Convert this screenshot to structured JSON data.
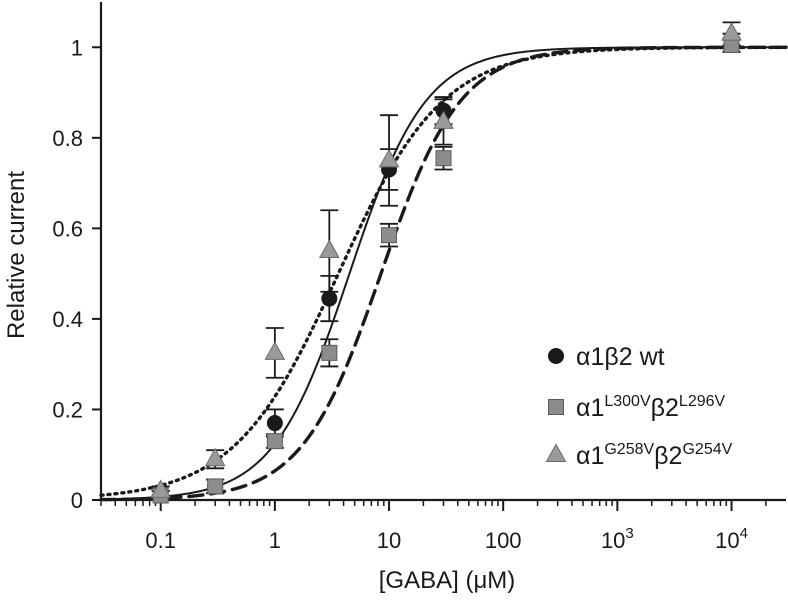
{
  "chart_data": {
    "type": "scatter",
    "title": "",
    "xlabel": "[GABA] (μM)",
    "ylabel": "Relative current",
    "xscale": "log",
    "xlim": [
      0.03,
      30000
    ],
    "ylim": [
      0,
      1.1
    ],
    "grid": false,
    "legend_position": "lower-right",
    "x_ticks": [
      {
        "value": 0.1,
        "label": "0.1"
      },
      {
        "value": 1,
        "label": "1"
      },
      {
        "value": 10,
        "label": "10"
      },
      {
        "value": 100,
        "label": "100"
      },
      {
        "value": 1000,
        "base": "10",
        "exp": "3"
      },
      {
        "value": 10000,
        "base": "10",
        "exp": "4"
      }
    ],
    "y_ticks": [
      {
        "value": 0,
        "label": "0"
      },
      {
        "value": 0.2,
        "label": "0.2"
      },
      {
        "value": 0.4,
        "label": "0.4"
      },
      {
        "value": 0.6,
        "label": "0.6"
      },
      {
        "value": 0.8,
        "label": "0.8"
      },
      {
        "value": 1,
        "label": "1"
      }
    ],
    "series": [
      {
        "name": "α1β2 wt",
        "legend": {
          "parts": [
            {
              "t": "α1β2 wt"
            }
          ]
        },
        "marker": "circle",
        "color": "#1a1a1a",
        "fit_style": "solid",
        "fit": {
          "ec50": 4.5,
          "hill": 1.3
        },
        "points": [
          {
            "x": 0.1,
            "y": 0.01,
            "err": 0.01
          },
          {
            "x": 0.3,
            "y": 0.03,
            "err": 0.015
          },
          {
            "x": 1,
            "y": 0.17,
            "err": 0.03
          },
          {
            "x": 3,
            "y": 0.445,
            "err": 0.05
          },
          {
            "x": 10,
            "y": 0.73,
            "err": 0.045
          },
          {
            "x": 30,
            "y": 0.86,
            "err": 0.03
          },
          {
            "x": 10000,
            "y": 1.01,
            "err": 0.02
          }
        ]
      },
      {
        "name": "α1L300Vβ2L296V",
        "legend": {
          "parts": [
            {
              "t": "α1"
            },
            {
              "t": "L300V",
              "sup": true
            },
            {
              "t": "β2"
            },
            {
              "t": "L296V",
              "sup": true
            }
          ]
        },
        "marker": "square",
        "color": "#8c8c8c",
        "fit_style": "dashed",
        "fit": {
          "ec50": 8.5,
          "hill": 1.25
        },
        "points": [
          {
            "x": 0.1,
            "y": 0.01,
            "err": 0.01
          },
          {
            "x": 0.3,
            "y": 0.03,
            "err": 0.015
          },
          {
            "x": 1,
            "y": 0.13,
            "err": 0.015
          },
          {
            "x": 3,
            "y": 0.325,
            "err": 0.03
          },
          {
            "x": 10,
            "y": 0.585,
            "err": 0.025
          },
          {
            "x": 30,
            "y": 0.755,
            "err": 0.025
          },
          {
            "x": 10000,
            "y": 1.005,
            "err": 0.015
          }
        ]
      },
      {
        "name": "α1G258Vβ2G254V",
        "legend": {
          "parts": [
            {
              "t": "α1"
            },
            {
              "t": "G258V",
              "sup": true
            },
            {
              "t": "β2"
            },
            {
              "t": "G254V",
              "sup": true
            }
          ]
        },
        "marker": "triangle",
        "color": "#9a9a9a",
        "fit_style": "dotted",
        "fit": {
          "ec50": 3.6,
          "hill": 0.95
        },
        "points": [
          {
            "x": 0.1,
            "y": 0.02,
            "err": 0.01
          },
          {
            "x": 0.3,
            "y": 0.09,
            "err": 0.02
          },
          {
            "x": 1,
            "y": 0.325,
            "err": 0.055
          },
          {
            "x": 3,
            "y": 0.55,
            "err": 0.09
          },
          {
            "x": 10,
            "y": 0.75,
            "err": 0.1
          },
          {
            "x": 30,
            "y": 0.835,
            "err": 0.05
          },
          {
            "x": 10000,
            "y": 1.03,
            "err": 0.025
          }
        ]
      }
    ]
  }
}
